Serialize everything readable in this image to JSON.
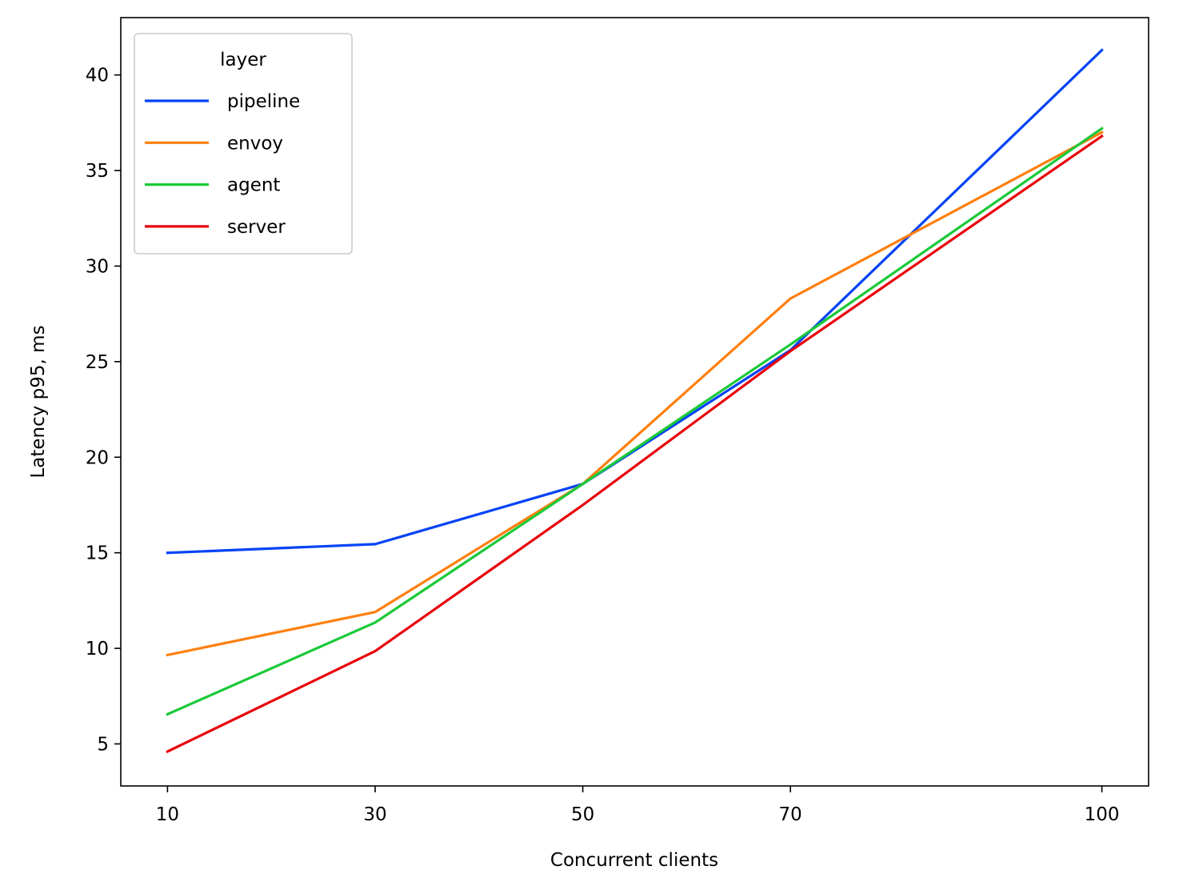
{
  "chart_data": {
    "type": "line",
    "title": "",
    "xlabel": "Concurrent clients",
    "ylabel": "Latency p95, ms",
    "x": [
      10,
      30,
      50,
      70,
      100
    ],
    "xlim": [
      5.5,
      104.5
    ],
    "ylim": [
      2.8,
      43.0
    ],
    "xticks": [
      10,
      30,
      50,
      70,
      100
    ],
    "yticks": [
      5,
      10,
      15,
      20,
      25,
      30,
      35,
      40
    ],
    "grid": false,
    "legend": {
      "title": "layer",
      "placement": "top-left"
    },
    "series": [
      {
        "name": "pipeline",
        "color": "#0343f5",
        "values": [
          15.0,
          15.45,
          18.6,
          25.6,
          41.3
        ]
      },
      {
        "name": "envoy",
        "color": "#ff7f0e",
        "values": [
          9.65,
          11.9,
          18.6,
          28.3,
          37.0
        ]
      },
      {
        "name": "agent",
        "color": "#1ac938",
        "values": [
          6.55,
          11.35,
          18.6,
          25.9,
          37.2
        ]
      },
      {
        "name": "server",
        "color": "#e8000b",
        "values": [
          4.6,
          9.85,
          17.5,
          25.55,
          36.8
        ]
      }
    ]
  }
}
